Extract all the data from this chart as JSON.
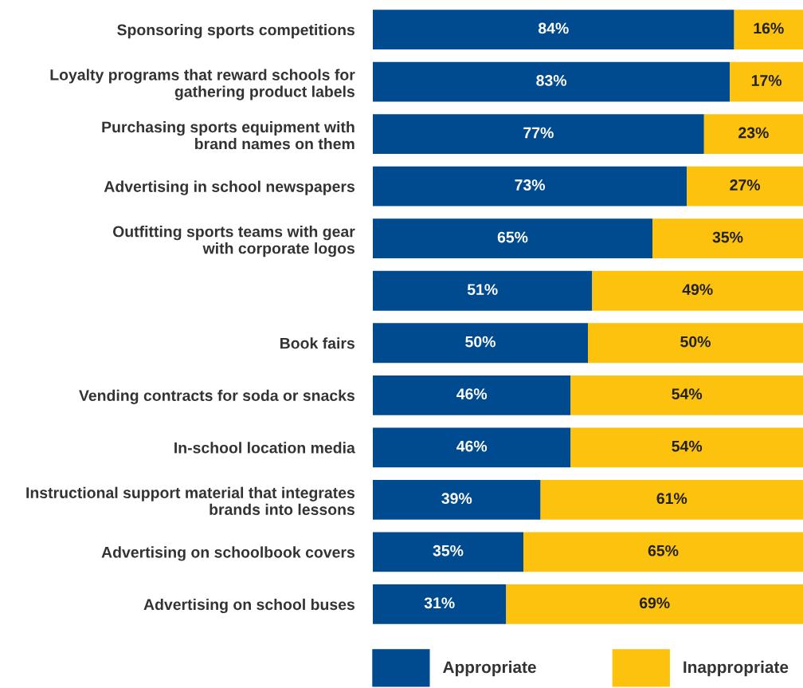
{
  "chart_data": {
    "type": "bar",
    "orientation": "horizontal",
    "stacked": true,
    "categories": [
      "Sponsoring sports competitions",
      "Loyalty programs that reward schools for\ngathering product labels",
      "Purchasing sports equipment with\nbrand names on them",
      "Advertising in school newspapers",
      "Outfitting sports teams with gear\nwith corporate logos",
      null,
      "Book fairs",
      "Vending contracts for soda or snacks",
      "In-school location media",
      "Instructional support material that integrates\nbrands into lessons",
      "Advertising on schoolbook covers",
      "Advertising on school buses"
    ],
    "series": [
      {
        "name": "Appropriate",
        "color": "#004a8f",
        "values": [
          84,
          83,
          77,
          73,
          65,
          51,
          50,
          46,
          46,
          39,
          35,
          31
        ],
        "value_labels": [
          "84%",
          "83%",
          "77%",
          "73%",
          "65%",
          "51%",
          "50%",
          "46%",
          "46%",
          "39%",
          "35%",
          "31%"
        ]
      },
      {
        "name": "Inappropriate",
        "color": "#fdc20e",
        "values": [
          16,
          17,
          23,
          27,
          35,
          49,
          50,
          54,
          54,
          61,
          65,
          69
        ],
        "value_labels": [
          "16%",
          "17%",
          "23%",
          "27%",
          "35%",
          "49%",
          "50%",
          "54%",
          "54%",
          "61%",
          "65%",
          "69%"
        ]
      }
    ],
    "xlim": [
      0,
      100
    ],
    "tick_labels": "y",
    "legend": "bottom",
    "grid": false
  }
}
